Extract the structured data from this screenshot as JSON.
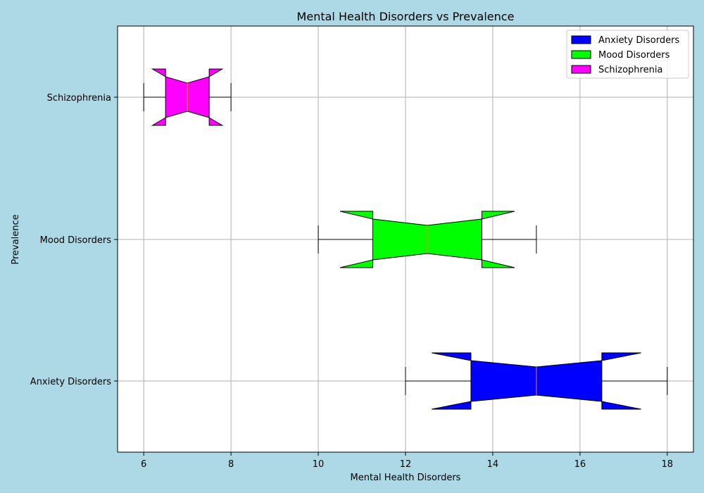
{
  "chart_data": {
    "type": "boxplot",
    "orientation": "horizontal",
    "notched": true,
    "title": "Mental Health Disorders vs Prevalence",
    "xlabel": "Mental Health Disorders",
    "ylabel": "Prevalence",
    "xlim": [
      5.4,
      18.6
    ],
    "xticks": [
      6,
      8,
      10,
      12,
      14,
      16,
      18
    ],
    "grid": true,
    "legend_position": "top-right",
    "categories": [
      "Anxiety Disorders",
      "Mood Disorders",
      "Schizophrenia"
    ],
    "series": [
      {
        "name": "Anxiety Disorders",
        "color": "#0000ff",
        "whisker_low": 12,
        "q1": 13.5,
        "median": 15,
        "q3": 16.5,
        "whisker_high": 18,
        "notch_low": 14.34,
        "notch_high": 15.66
      },
      {
        "name": "Mood Disorders",
        "color": "#00ff00",
        "whisker_low": 10,
        "q1": 11.25,
        "median": 12.5,
        "q3": 13.75,
        "whisker_high": 15,
        "notch_low": 11.95,
        "notch_high": 13.05
      },
      {
        "name": "Schizophrenia",
        "color": "#ff00ff",
        "whisker_low": 6,
        "q1": 6.5,
        "median": 7,
        "q3": 7.5,
        "whisker_high": 8,
        "notch_low": 6.78,
        "notch_high": 7.22
      }
    ],
    "median_color": "#ff7f0e"
  }
}
